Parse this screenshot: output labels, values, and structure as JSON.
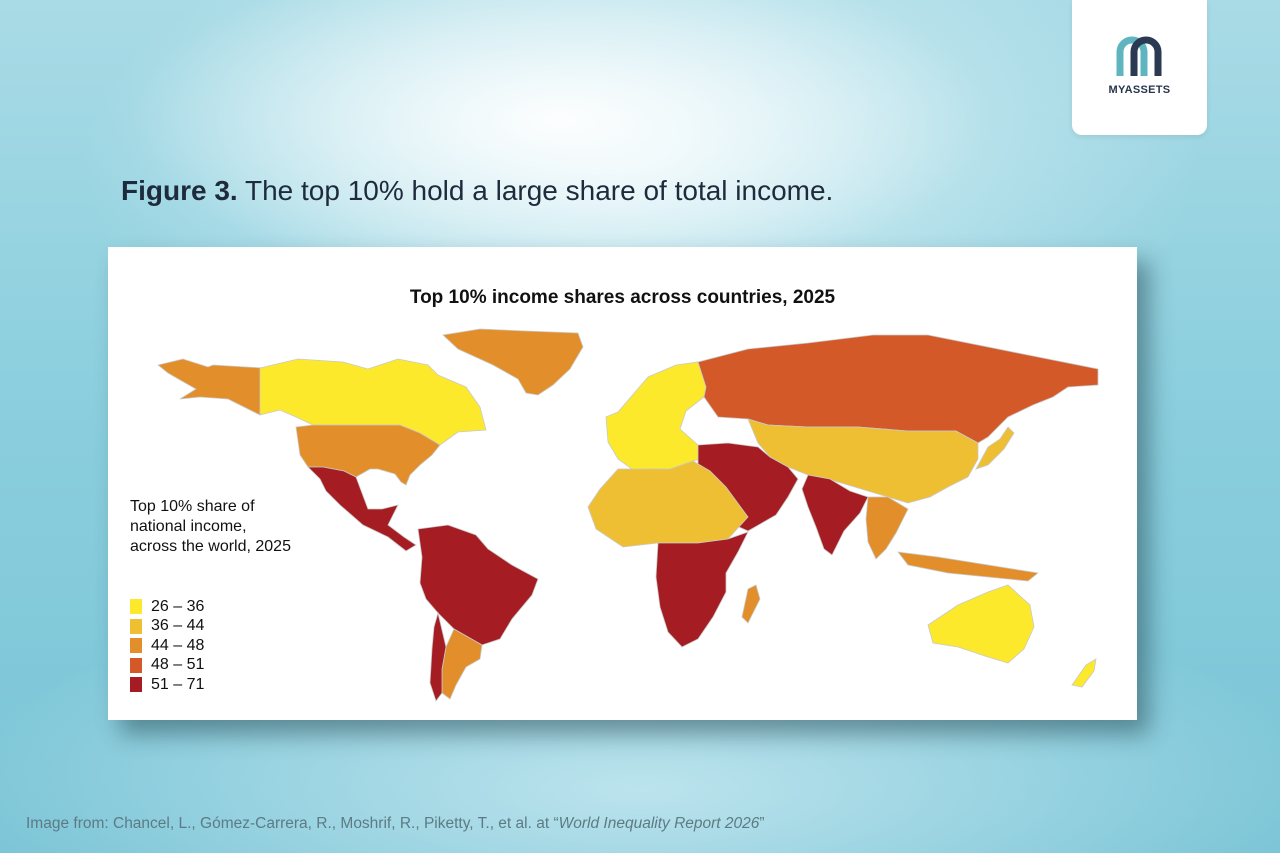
{
  "logo": {
    "text": "MYASSETS",
    "icon": "myassets-logo-icon",
    "colors": {
      "teal": "#5fb5bf",
      "navy": "#2a3a52"
    }
  },
  "caption": {
    "figure_label": "Figure 3.",
    "text": " The top 10% hold a large share of total income."
  },
  "map": {
    "title": "Top 10% income shares across countries, 2025",
    "legend": {
      "title_lines": [
        "Top 10% share of",
        "national income,",
        "across the world, 2025"
      ],
      "bins": [
        {
          "label": "26 – 36",
          "color": "#fde92b"
        },
        {
          "label": "36 – 44",
          "color": "#efbf33"
        },
        {
          "label": "44 – 48",
          "color": "#e28f2b"
        },
        {
          "label": "48 – 51",
          "color": "#d35a28"
        },
        {
          "label": "51 – 71",
          "color": "#a51d22"
        }
      ]
    },
    "regions": [
      {
        "name": "Canada",
        "range": "26 – 36"
      },
      {
        "name": "Greenland",
        "range": "44 – 48"
      },
      {
        "name": "Alaska",
        "range": "44 – 48"
      },
      {
        "name": "United States",
        "range": "44 – 48"
      },
      {
        "name": "Mexico & Central America",
        "range": "51 – 71"
      },
      {
        "name": "South America",
        "range": "51 – 71"
      },
      {
        "name": "Argentina",
        "range": "44 – 48"
      },
      {
        "name": "Chile",
        "range": "51 – 71"
      },
      {
        "name": "Europe",
        "range": "26 – 36"
      },
      {
        "name": "Russia",
        "range": "48 – 51"
      },
      {
        "name": "Central Asia & China",
        "range": "36 – 44"
      },
      {
        "name": "Middle East",
        "range": "51 – 71"
      },
      {
        "name": "North Africa",
        "range": "36 – 44"
      },
      {
        "name": "Sub-Saharan Africa",
        "range": "51 – 71"
      },
      {
        "name": "India",
        "range": "51 – 71"
      },
      {
        "name": "Southeast Asia",
        "range": "44 – 48"
      },
      {
        "name": "Japan",
        "range": "36 – 44"
      },
      {
        "name": "Australia",
        "range": "26 – 36"
      },
      {
        "name": "New Zealand",
        "range": "26 – 36"
      },
      {
        "name": "Madagascar",
        "range": "44 – 48"
      }
    ]
  },
  "source": {
    "prefix": "Image from: Chancel, L., Gómez-Carrera, R., Moshrif, R., Piketty, T., et al. at “",
    "title": "World Inequality Report 2026",
    "suffix": "”"
  }
}
